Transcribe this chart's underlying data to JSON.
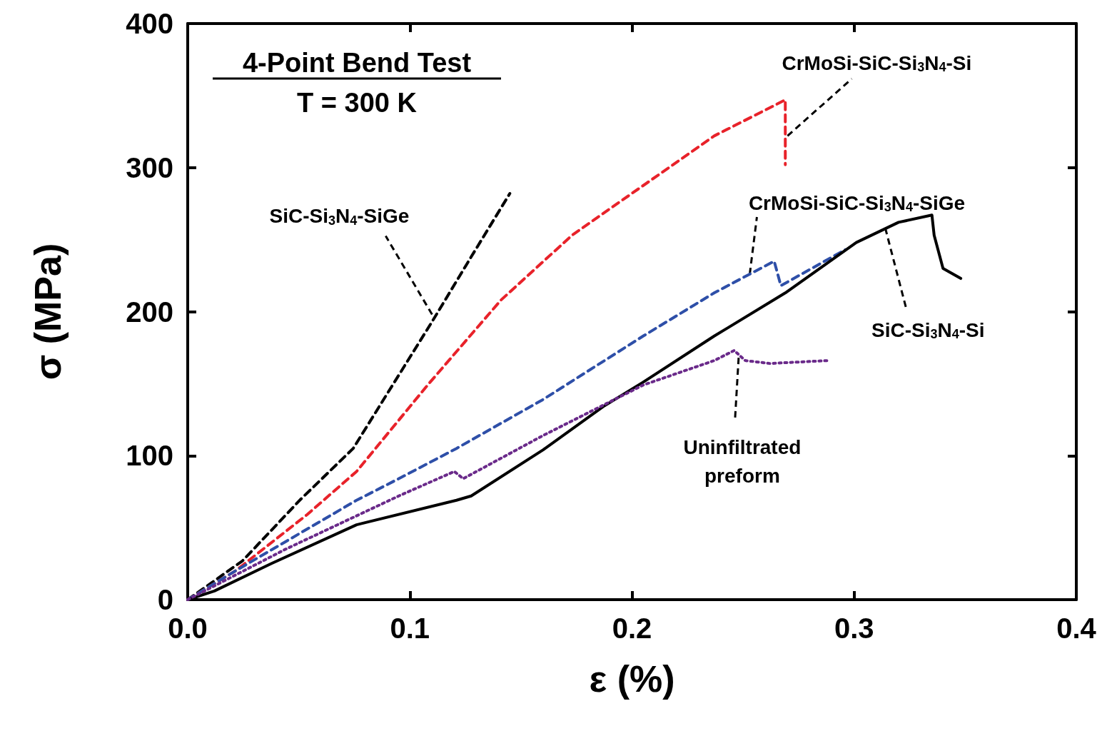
{
  "chart_data": {
    "type": "line",
    "xlabel": "ε (%)",
    "ylabel": "σ (MPa)",
    "xlim": [
      0,
      0.4
    ],
    "ylim": [
      0,
      400
    ],
    "xticks": [
      {
        "value": 0,
        "label": "0.0"
      },
      0.1,
      0.2,
      0.3,
      0.4
    ],
    "yticks": [
      0,
      100,
      200,
      300,
      400
    ],
    "grid": false,
    "marker": "none",
    "series": [
      {
        "color": "#000000",
        "line_style": "dashed",
        "x": [
          0,
          0.0247,
          0.0504,
          0.0745,
          0.089,
          0.11,
          0.1276,
          0.145
        ],
        "values": [
          0,
          27,
          69,
          105,
          141,
          193,
          238,
          282
        ]
      },
      {
        "color": "#e8222a",
        "line_style": "dashed",
        "x": [
          0,
          0.0215,
          0.0537,
          0.076,
          0.108,
          0.141,
          0.173,
          0.237,
          0.269,
          0.269
        ],
        "values": [
          0,
          20,
          59,
          89,
          149,
          208,
          253,
          322,
          347,
          302
        ]
      },
      {
        "color": "#2e4fa8",
        "line_style": "dashed",
        "x": [
          0,
          0.0215,
          0.076,
          0.095,
          0.121,
          0.16,
          0.205,
          0.237,
          0.264,
          0.267,
          0.296
        ],
        "values": [
          0,
          20,
          69,
          84,
          105,
          139,
          183,
          213,
          235,
          218,
          243
        ]
      },
      {
        "color": "#000000",
        "line_style": "solid",
        "x": [
          0,
          0.012,
          0.0376,
          0.076,
          0.121,
          0.1276,
          0.16,
          0.187,
          0.205,
          0.237,
          0.269,
          0.301,
          0.32,
          0.335,
          0.336,
          0.34,
          0.348
        ],
        "values": [
          0,
          6,
          25,
          52,
          69,
          72,
          104,
          134,
          151,
          183,
          213,
          248,
          262,
          267,
          253,
          230,
          223
        ]
      },
      {
        "color": "#6a2a8a",
        "line_style": "dotted",
        "x": [
          0,
          0.044,
          0.095,
          0.12,
          0.124,
          0.16,
          0.205,
          0.237,
          0.246,
          0.251,
          0.262,
          0.288
        ],
        "values": [
          0,
          35,
          72,
          89,
          84,
          114,
          149,
          166,
          173,
          166,
          164,
          166
        ]
      }
    ],
    "annotations": [
      "4-Point Bend Test",
      "T = 300 K",
      {
        "text": "SiC-Si$_{3}$N$_{4}$-SiGe",
        "x": 0.11,
        "y": 198
      },
      {
        "text": "CrMoSi-SiC-Si$_{3}$N$_{4}$-Si",
        "x": 0.27,
        "y": 322
      },
      {
        "text": "CrMoSi-SiC-Si$_{3}$N$_{4}$-SiGe",
        "x": 0.253,
        "y": 226
      },
      {
        "text": "SiC-Si$_{3}$N$_{4}$-Si",
        "x": 0.314,
        "y": 258
      },
      {
        "text": "Uninfiltrated\npreform",
        "x": 0.248,
        "y": 168
      }
    ]
  }
}
